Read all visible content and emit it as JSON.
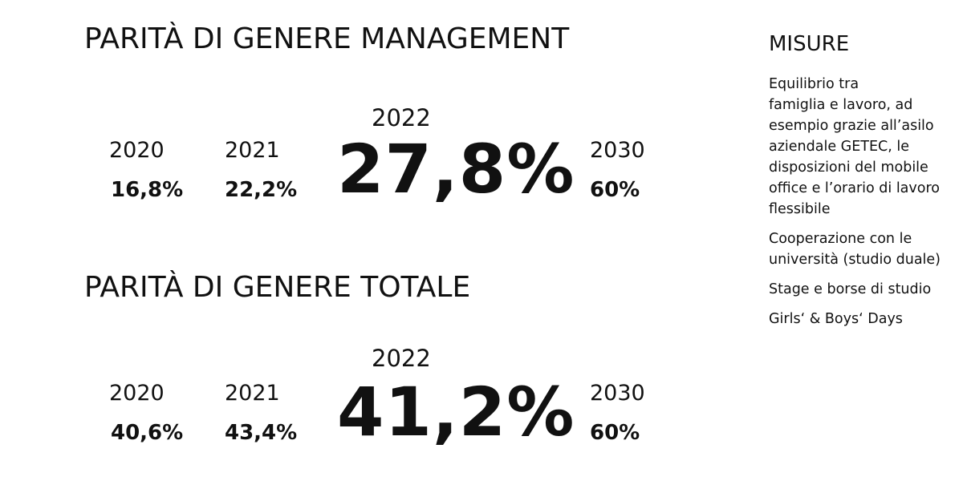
{
  "management": {
    "title": "PARITÀ DI GENERE MANAGEMENT",
    "y2020": {
      "year": "2020",
      "value": "16,8%"
    },
    "y2021": {
      "year": "2021",
      "value": "22,2%"
    },
    "y2022": {
      "year": "2022",
      "value": "27,8%"
    },
    "y2030": {
      "year": "2030",
      "value": "60%"
    }
  },
  "totale": {
    "title": "PARITÀ DI GENERE TOTALE",
    "y2020": {
      "year": "2020",
      "value": "40,6%"
    },
    "y2021": {
      "year": "2021",
      "value": "43,4%"
    },
    "y2022": {
      "year": "2022",
      "value": "41,2%"
    },
    "y2030": {
      "year": "2030",
      "value": "60%"
    }
  },
  "misure": {
    "title": "MISURE",
    "items": [
      "Equilibrio tra\nfamiglia e lavoro, ad\nesempio grazie all’asilo\naziendale GETEC, le\ndisposizioni del mobile\noffice e l’orario di lavoro\nflessibile",
      "Cooperazione con le\nuniversità (studio duale)",
      "Stage e borse di studio",
      "Girls‘ & Boys‘ Days"
    ]
  }
}
